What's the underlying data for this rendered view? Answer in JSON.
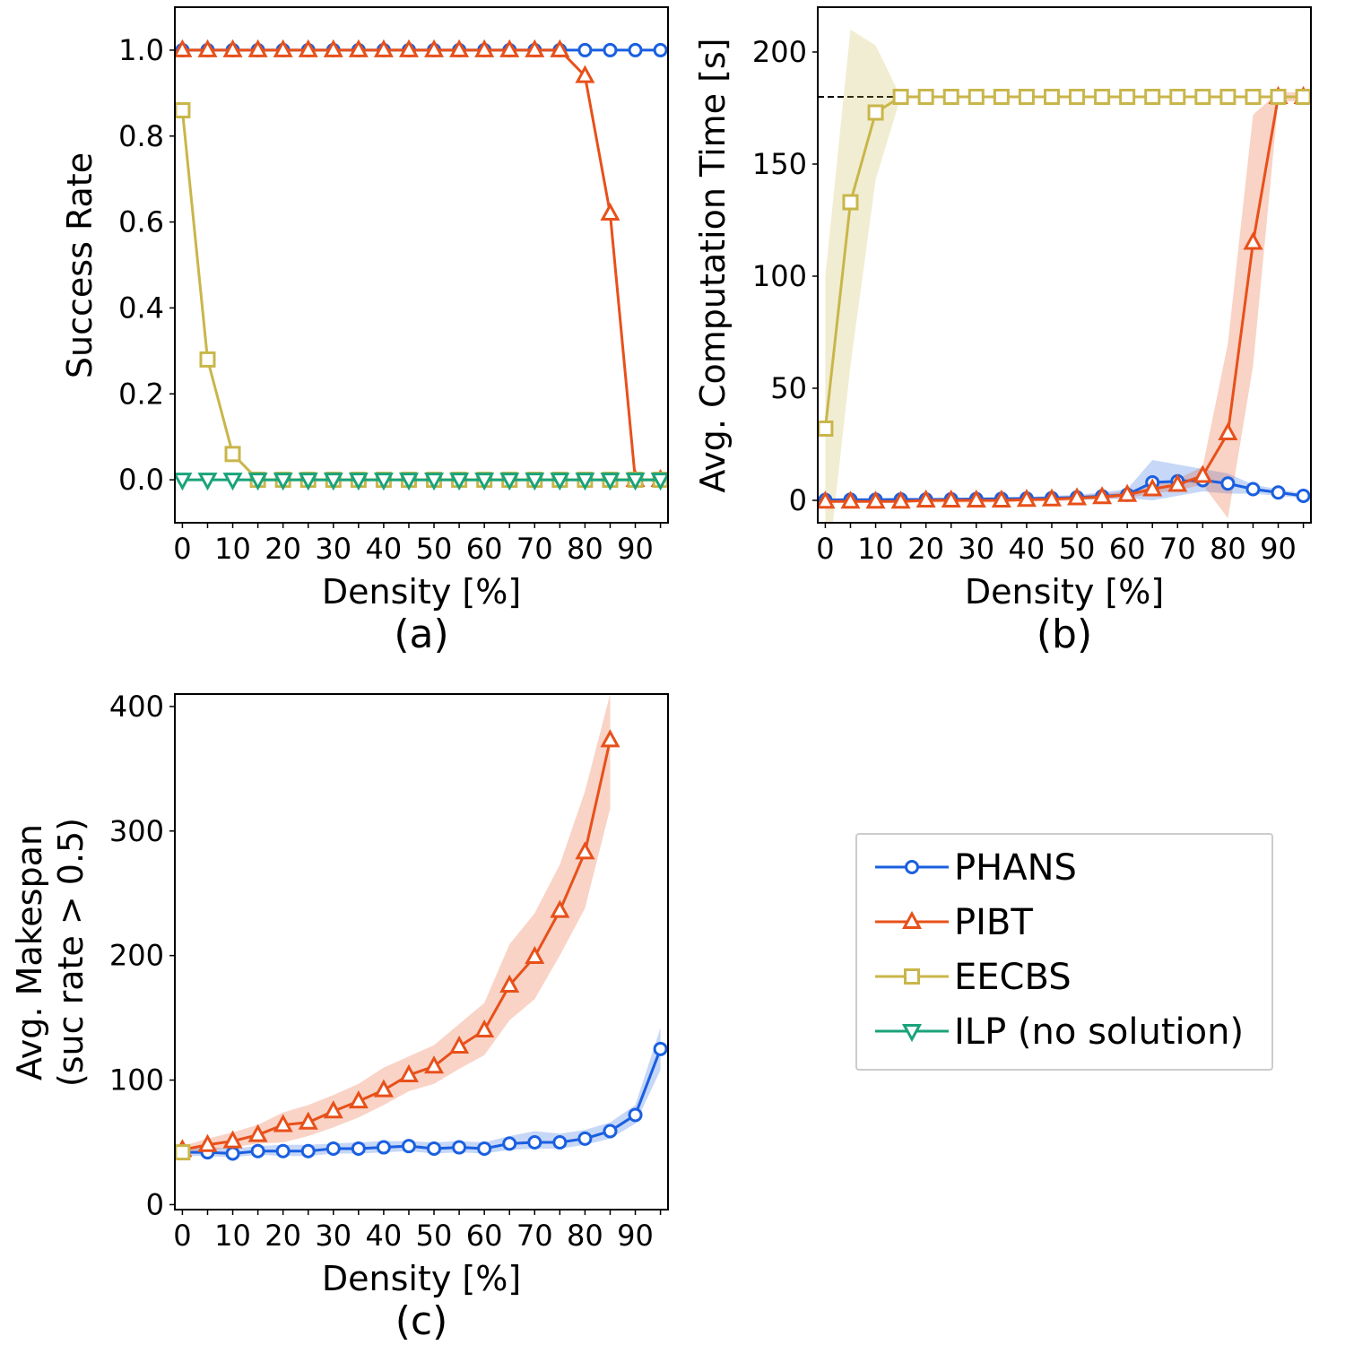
{
  "legend": {
    "items": [
      {
        "key": "phans",
        "label": "PHANS"
      },
      {
        "key": "pibt",
        "label": "PIBT"
      },
      {
        "key": "eecbs",
        "label": "EECBS"
      },
      {
        "key": "ilp",
        "label": "ILP (no solution)"
      }
    ]
  },
  "series_style": {
    "phans": {
      "color": "#1a5fe0",
      "marker": "circle"
    },
    "pibt": {
      "color": "#e8501a",
      "marker": "triangle-up"
    },
    "eecbs": {
      "color": "#c9b64a",
      "marker": "square"
    },
    "ilp": {
      "color": "#1aa37a",
      "marker": "triangle-down"
    }
  },
  "chart_data": [
    {
      "type": "line",
      "panel_label": "(a)",
      "xlabel": "Density [%]",
      "ylabel": "Success Rate",
      "xlim": [
        -1.5,
        96.5
      ],
      "ylim": [
        -0.1,
        1.1
      ],
      "xticks": [
        0,
        10,
        20,
        30,
        40,
        50,
        60,
        70,
        80,
        90
      ],
      "yticks": [
        0.0,
        0.2,
        0.4,
        0.6,
        0.8,
        1.0
      ],
      "ytick_labels": [
        "0.0",
        "0.2",
        "0.4",
        "0.6",
        "0.8",
        "1.0"
      ],
      "series": [
        {
          "key": "phans",
          "x": [
            0,
            5,
            10,
            15,
            20,
            25,
            30,
            35,
            40,
            45,
            50,
            55,
            60,
            65,
            70,
            75,
            80,
            85,
            90,
            95
          ],
          "y": [
            1,
            1,
            1,
            1,
            1,
            1,
            1,
            1,
            1,
            1,
            1,
            1,
            1,
            1,
            1,
            1,
            1,
            1,
            1,
            1
          ]
        },
        {
          "key": "pibt",
          "x": [
            0,
            5,
            10,
            15,
            20,
            25,
            30,
            35,
            40,
            45,
            50,
            55,
            60,
            65,
            70,
            75,
            80,
            85,
            90,
            95
          ],
          "y": [
            1,
            1,
            1,
            1,
            1,
            1,
            1,
            1,
            1,
            1,
            1,
            1,
            1,
            1,
            1,
            1,
            0.94,
            0.62,
            0,
            0
          ]
        },
        {
          "key": "eecbs",
          "x": [
            0,
            5,
            10,
            15,
            20,
            25,
            30,
            35,
            40,
            45,
            50,
            55,
            60,
            65,
            70,
            75,
            80,
            85,
            90,
            95
          ],
          "y": [
            0.86,
            0.28,
            0.06,
            0,
            0,
            0,
            0,
            0,
            0,
            0,
            0,
            0,
            0,
            0,
            0,
            0,
            0,
            0,
            0,
            0
          ]
        },
        {
          "key": "ilp",
          "x": [
            0,
            5,
            10,
            15,
            20,
            25,
            30,
            35,
            40,
            45,
            50,
            55,
            60,
            65,
            70,
            75,
            80,
            85,
            90,
            95
          ],
          "y": [
            0,
            0,
            0,
            0,
            0,
            0,
            0,
            0,
            0,
            0,
            0,
            0,
            0,
            0,
            0,
            0,
            0,
            0,
            0,
            0
          ]
        }
      ]
    },
    {
      "type": "line",
      "panel_label": "(b)",
      "xlabel": "Density [%]",
      "ylabel": "Avg. Computation Time [s]",
      "xlim": [
        -1.5,
        96.5
      ],
      "ylim": [
        -10,
        220
      ],
      "xticks": [
        0,
        10,
        20,
        30,
        40,
        50,
        60,
        70,
        80,
        90
      ],
      "yticks": [
        0,
        50,
        100,
        150,
        200
      ],
      "ytick_labels": [
        "0",
        "50",
        "100",
        "150",
        "200"
      ],
      "reference_line": {
        "y": 180,
        "style": "dashed"
      },
      "series": [
        {
          "key": "phans",
          "x": [
            0,
            5,
            10,
            15,
            20,
            25,
            30,
            35,
            40,
            45,
            50,
            55,
            60,
            65,
            70,
            75,
            80,
            85,
            90,
            95
          ],
          "y": [
            0.2,
            0.3,
            0.3,
            0.4,
            0.4,
            0.5,
            0.6,
            0.7,
            0.8,
            1.0,
            1.3,
            1.8,
            2.5,
            8.0,
            8.5,
            9.0,
            7.5,
            5.0,
            3.5,
            2.0
          ],
          "lower": [
            0,
            0,
            0,
            0,
            0,
            0,
            0,
            0,
            0,
            0,
            0.3,
            0.5,
            1.0,
            0,
            2,
            4,
            3,
            3,
            2,
            1
          ],
          "upper": [
            0.5,
            0.6,
            0.6,
            0.8,
            0.8,
            1.0,
            1.2,
            1.4,
            1.6,
            2.0,
            2.5,
            3.5,
            5.0,
            18,
            16,
            14,
            12,
            7,
            5,
            3
          ]
        },
        {
          "key": "pibt",
          "x": [
            0,
            5,
            10,
            15,
            20,
            25,
            30,
            35,
            40,
            45,
            50,
            55,
            60,
            65,
            70,
            75,
            80,
            85,
            90,
            95
          ],
          "y": [
            -0.5,
            -0.5,
            -0.5,
            -0.5,
            0,
            0,
            0,
            0,
            0.3,
            0.5,
            1.0,
            1.5,
            2.5,
            5.0,
            7.0,
            11.0,
            30.0,
            115.0,
            180.0,
            180.0
          ],
          "lower": [
            -1,
            -1,
            -1,
            -1,
            -1,
            -1,
            -1,
            -1,
            -0.5,
            -0.5,
            0,
            0.5,
            1.0,
            3.0,
            4.5,
            7.0,
            -8.0,
            60.0,
            178.0,
            178.0
          ],
          "upper": [
            0,
            0,
            0,
            0,
            0.5,
            0.5,
            0.5,
            0.5,
            1.0,
            1.5,
            2.0,
            3.0,
            4.0,
            7.0,
            9.5,
            15.0,
            70.0,
            172.0,
            182.0,
            182.0
          ]
        },
        {
          "key": "eecbs",
          "x": [
            0,
            5,
            10,
            15,
            20,
            25,
            30,
            35,
            40,
            45,
            50,
            55,
            60,
            65,
            70,
            75,
            80,
            85,
            90,
            95
          ],
          "y": [
            32,
            133,
            173,
            180,
            180,
            180,
            180,
            180,
            180,
            180,
            180,
            180,
            180,
            180,
            180,
            180,
            180,
            180,
            180,
            180
          ],
          "lower": [
            -40,
            60,
            143,
            180,
            180,
            180,
            180,
            180,
            180,
            180,
            180,
            180,
            180,
            180,
            180,
            180,
            180,
            180,
            180,
            180
          ],
          "upper": [
            100,
            210,
            203,
            180,
            180,
            180,
            180,
            180,
            180,
            180,
            180,
            180,
            180,
            180,
            180,
            180,
            180,
            180,
            180,
            180
          ]
        }
      ]
    },
    {
      "type": "line",
      "panel_label": "(c)",
      "xlabel": "Density [%]",
      "ylabel": [
        "Avg. Makespan",
        "(suc rate > 0.5)"
      ],
      "xlim": [
        -1.5,
        96.5
      ],
      "ylim": [
        -4,
        410
      ],
      "xticks": [
        0,
        10,
        20,
        30,
        40,
        50,
        60,
        70,
        80,
        90
      ],
      "yticks": [
        0,
        100,
        200,
        300,
        400
      ],
      "ytick_labels": [
        "0",
        "100",
        "200",
        "300",
        "400"
      ],
      "series": [
        {
          "key": "phans",
          "x": [
            0,
            5,
            10,
            15,
            20,
            25,
            30,
            35,
            40,
            45,
            50,
            55,
            60,
            65,
            70,
            75,
            80,
            85,
            90,
            95
          ],
          "y": [
            42,
            42,
            41,
            43,
            43,
            43,
            45,
            45,
            46,
            47,
            45,
            46,
            45,
            49,
            50,
            50,
            53,
            59,
            72,
            125
          ],
          "lower": [
            39,
            39,
            38,
            40,
            39,
            39,
            41,
            41,
            42,
            43,
            41,
            42,
            41,
            44,
            45,
            45,
            48,
            53,
            65,
            108
          ],
          "upper": [
            46,
            46,
            45,
            47,
            48,
            48,
            49,
            50,
            51,
            51,
            50,
            51,
            50,
            55,
            59,
            57,
            60,
            66,
            80,
            142
          ]
        },
        {
          "key": "pibt",
          "x": [
            0,
            5,
            10,
            15,
            20,
            25,
            30,
            35,
            40,
            45,
            50,
            55,
            60,
            65,
            70,
            75,
            80,
            85
          ],
          "y": [
            44,
            48,
            51,
            56,
            64,
            66,
            75,
            83,
            92,
            104,
            111,
            127,
            140,
            176,
            199,
            236,
            283,
            373
          ],
          "lower": [
            40,
            43,
            46,
            49,
            50,
            55,
            62,
            70,
            80,
            91,
            97,
            109,
            120,
            148,
            165,
            200,
            238,
            318
          ],
          "upper": [
            47,
            53,
            58,
            64,
            74,
            80,
            88,
            97,
            110,
            119,
            128,
            145,
            162,
            209,
            234,
            273,
            332,
            410
          ]
        },
        {
          "key": "eecbs",
          "x": [
            0
          ],
          "y": [
            42
          ]
        }
      ]
    }
  ]
}
